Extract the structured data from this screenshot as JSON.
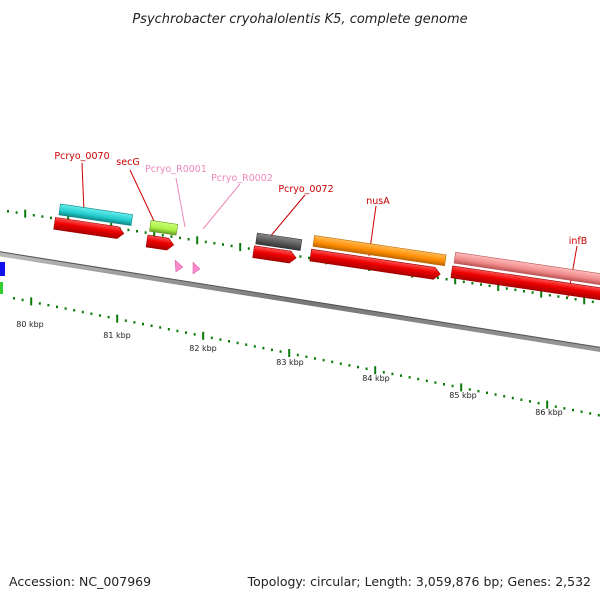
{
  "title": "Psychrobacter cryohalolentis K5, complete genome",
  "footer": {
    "accession": "Accession: NC_007969",
    "summary": "Topology: circular; Length: 3,059,876 bp; Genes: 2,532"
  },
  "scale_labels": [
    "80 kbp",
    "81 kbp",
    "82 kbp",
    "83 kbp",
    "84 kbp",
    "85 kbp",
    "86 kbp"
  ],
  "gene_labels": [
    {
      "name": "Pcryo_0070",
      "color": "#cc0000"
    },
    {
      "name": "secG",
      "color": "#cc0000"
    },
    {
      "name": "Pcryo_R0001",
      "color": "#ee88bb"
    },
    {
      "name": "Pcryo_R0002",
      "color": "#ee88bb"
    },
    {
      "name": "Pcryo_0072",
      "color": "#cc0000"
    },
    {
      "name": "nusA",
      "color": "#cc0000"
    },
    {
      "name": "infB",
      "color": "#cc0000"
    }
  ],
  "feature_colors": {
    "backbone": "#888888",
    "tick": "#0a7a0a",
    "cds": "#ee0000",
    "trna": "#ff88cc",
    "cyan": "#22cccc",
    "lime": "#aaf044",
    "gray": "#555555",
    "orange": "#ff8c00",
    "salmon": "#ee8888",
    "blue": "#1111ee",
    "green": "#33cc33"
  }
}
